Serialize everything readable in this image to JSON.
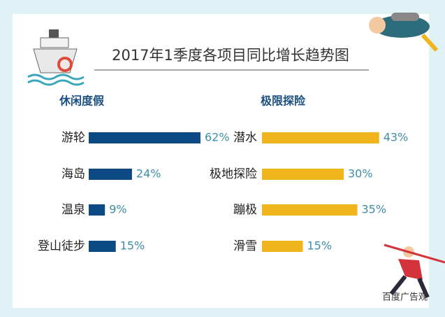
{
  "title": "2017年1季度各项目同比增长趋势图",
  "watermark": "百度广告观",
  "chart_data": [
    {
      "type": "bar",
      "orientation": "horizontal",
      "title": "休闲度假",
      "categories": [
        "游轮",
        "海岛",
        "温泉",
        "登山徒步"
      ],
      "values": [
        62,
        24,
        9,
        15
      ],
      "value_labels": [
        "62%",
        "24%",
        "9%",
        "15%"
      ],
      "color": "#0d4a85"
    },
    {
      "type": "bar",
      "orientation": "horizontal",
      "title": "极限探险",
      "categories": [
        "潜水",
        "极地探险",
        "蹦极",
        "滑雪"
      ],
      "values": [
        43,
        30,
        35,
        15
      ],
      "value_labels": [
        "43%",
        "30%",
        "35%",
        "15%"
      ],
      "color": "#f0b51a"
    }
  ]
}
